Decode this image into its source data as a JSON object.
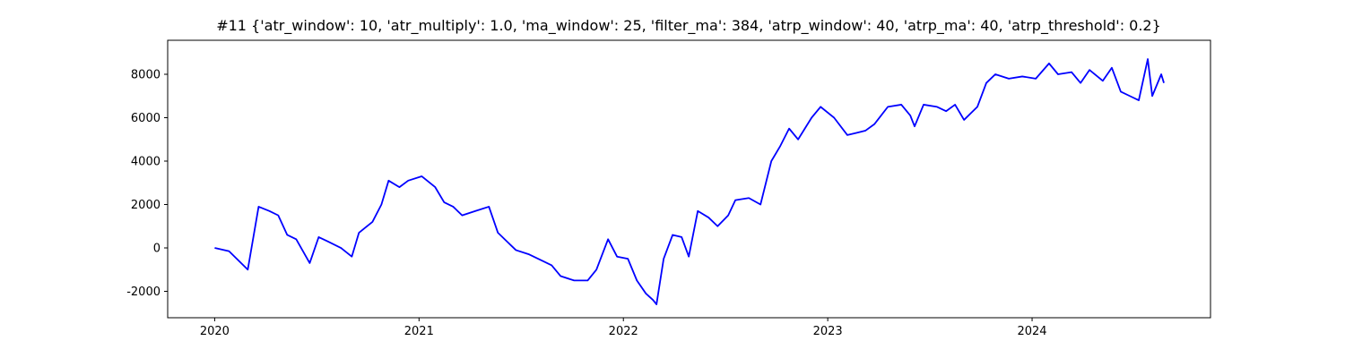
{
  "chart_data": {
    "type": "line",
    "title": "#11 {'atr_window': 10, 'atr_multiply': 1.0, 'ma_window': 25, 'filter_ma': 384, 'atrp_window': 40, 'atrp_ma': 40, 'atrp_threshold': 0.2}",
    "x": [
      2020.0,
      2020.07,
      2020.162,
      2020.215,
      2020.268,
      2020.311,
      2020.355,
      2020.399,
      2020.465,
      2020.509,
      2020.553,
      2020.618,
      2020.671,
      2020.706,
      2020.772,
      2020.816,
      2020.851,
      2020.904,
      2020.947,
      2021.013,
      2021.079,
      2021.123,
      2021.167,
      2021.211,
      2021.276,
      2021.342,
      2021.386,
      2021.43,
      2021.474,
      2021.539,
      2021.605,
      2021.649,
      2021.693,
      2021.759,
      2021.825,
      2021.868,
      2021.925,
      2021.969,
      2022.022,
      2022.066,
      2022.11,
      2022.145,
      2022.162,
      2022.197,
      2022.241,
      2022.285,
      2022.32,
      2022.364,
      2022.417,
      2022.461,
      2022.513,
      2022.548,
      2022.614,
      2022.671,
      2022.724,
      2022.768,
      2022.811,
      2022.855,
      2022.921,
      2022.965,
      2023.031,
      2023.096,
      2023.14,
      2023.184,
      2023.228,
      2023.294,
      2023.36,
      2023.404,
      2023.425,
      2023.469,
      2023.535,
      2023.579,
      2023.623,
      2023.667,
      2023.732,
      2023.776,
      2023.82,
      2023.886,
      2023.952,
      2024.018,
      2024.083,
      2024.127,
      2024.193,
      2024.237,
      2024.281,
      2024.346,
      2024.39,
      2024.434,
      2024.478,
      2024.522,
      2024.566,
      2024.588,
      2024.632,
      2024.645
    ],
    "series": [
      {
        "color": "#0000ff",
        "values": [
          0,
          -150,
          -1000,
          1900,
          1700,
          1500,
          600,
          400,
          -700,
          500,
          300,
          0,
          -400,
          700,
          1200,
          2000,
          3100,
          2800,
          3100,
          3300,
          2800,
          2100,
          1900,
          1500,
          1700,
          1900,
          700,
          300,
          -100,
          -300,
          -600,
          -800,
          -1300,
          -1500,
          -1500,
          -1000,
          400,
          -400,
          -500,
          -1500,
          -2100,
          -2400,
          -2600,
          -500,
          600,
          500,
          -400,
          1700,
          1400,
          1000,
          1500,
          2200,
          2300,
          2000,
          4000,
          4700,
          5500,
          5000,
          6000,
          6500,
          6000,
          5200,
          5300,
          5400,
          5700,
          6500,
          6600,
          6100,
          5600,
          6600,
          6500,
          6300,
          6600,
          5900,
          6500,
          7600,
          8000,
          7800,
          7900,
          7800,
          8500,
          8000,
          8100,
          7600,
          8200,
          7700,
          8300,
          7200,
          7000,
          6800,
          8700,
          7000,
          8000,
          7600
        ]
      }
    ],
    "xlim": [
      2019.77,
      2024.873
    ],
    "xticks": [
      2020,
      2021,
      2022,
      2023,
      2024
    ],
    "ylim": [
      -3216,
      9567
    ],
    "yticks": [
      -2000,
      0,
      2000,
      4000,
      6000,
      8000
    ]
  }
}
